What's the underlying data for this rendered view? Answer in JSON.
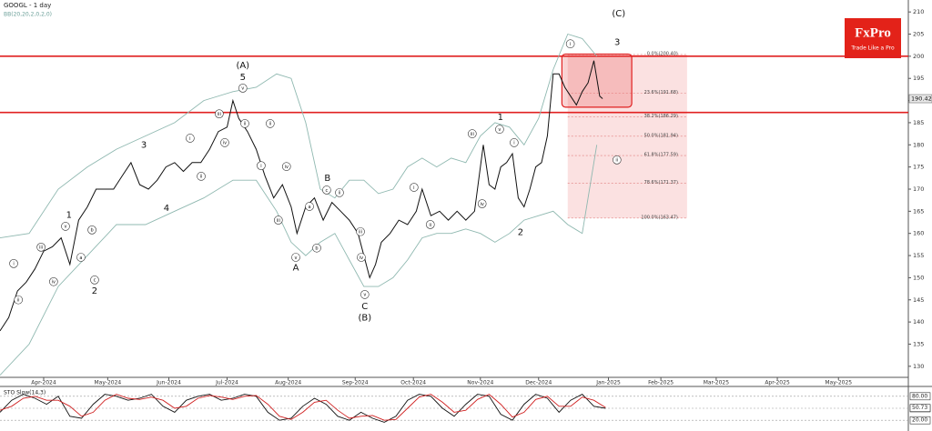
{
  "chart_data": [
    {
      "type": "line",
      "title": "GOOGL - 1 day",
      "subtitle": "BB(20,20,2,0,2,0)",
      "logo": {
        "name": "FxPro",
        "tagline": "Trade Like a Pro"
      },
      "xlim": [
        0,
        312
      ],
      "xticks": [
        {
          "value": 15,
          "label": "Apr-2024"
        },
        {
          "value": 37,
          "label": "May-2024"
        },
        {
          "value": 58,
          "label": "Jun-2024"
        },
        {
          "value": 78,
          "label": "Jul-2024"
        },
        {
          "value": 99,
          "label": "Aug-2024"
        },
        {
          "value": 122,
          "label": "Sep-2024"
        },
        {
          "value": 142,
          "label": "Oct-2024"
        },
        {
          "value": 165,
          "label": "Nov-2024"
        },
        {
          "value": 185,
          "label": "Dec-2024"
        },
        {
          "value": 209,
          "label": "Jan-2025"
        },
        {
          "value": 227,
          "label": "Feb-2025"
        },
        {
          "value": 246,
          "label": "Mar-2025"
        },
        {
          "value": 267,
          "label": "Apr-2025"
        },
        {
          "value": 288,
          "label": "May-2025"
        }
      ],
      "ylim": [
        127.5,
        212.7
      ],
      "yticks": [
        130,
        135,
        140,
        145,
        150,
        155,
        160,
        165,
        170,
        175,
        180,
        185,
        190,
        195,
        200,
        205,
        210
      ],
      "last_price": 190.42,
      "series": [
        {
          "color": "#111111",
          "x": [
            0,
            3,
            6,
            9,
            12,
            15,
            18,
            21,
            24,
            27,
            30,
            33,
            36,
            39,
            42,
            45,
            48,
            51,
            54,
            57,
            60,
            63,
            66,
            69,
            72,
            75,
            78,
            80,
            82,
            85,
            88,
            91,
            94,
            97,
            100,
            102,
            105,
            108,
            111,
            114,
            117,
            120,
            123,
            125,
            127,
            129,
            131,
            134,
            137,
            140,
            143,
            145,
            148,
            151,
            154,
            157,
            160,
            163,
            166,
            168,
            170,
            172,
            174,
            176,
            178,
            180,
            182,
            184,
            186,
            188,
            190,
            192,
            194,
            196,
            198,
            200,
            202,
            204,
            206,
            207
          ],
          "values": [
            138,
            141,
            147,
            149,
            152,
            156,
            157,
            159,
            153,
            163,
            166,
            170,
            170,
            170,
            173,
            176,
            171,
            170,
            172,
            175,
            176,
            174,
            176,
            176,
            179,
            183,
            184,
            190,
            186,
            183,
            179,
            173,
            168,
            171,
            166,
            160,
            166,
            168,
            163,
            167,
            165,
            163,
            160,
            155,
            150,
            153,
            158,
            160,
            163,
            162,
            165,
            170,
            164,
            165,
            163,
            165,
            163,
            165,
            180,
            171,
            170,
            175,
            176,
            178,
            168,
            166,
            170,
            175,
            176,
            182,
            196,
            196,
            193,
            191,
            189,
            192,
            194,
            199,
            191,
            190.42
          ]
        },
        {
          "color": "#8fb8b0",
          "x": [
            0,
            10,
            20,
            30,
            40,
            50,
            60,
            70,
            80,
            88,
            95,
            100,
            105,
            110,
            115,
            120,
            125,
            130,
            135,
            140,
            145,
            150,
            155,
            160,
            165,
            170,
            175,
            180,
            185,
            190,
            195,
            200,
            205
          ],
          "values": [
            159,
            160,
            170,
            175,
            179,
            182,
            185,
            190,
            192,
            193,
            196,
            195,
            185,
            170,
            168,
            172,
            172,
            169,
            170,
            175,
            177,
            175,
            177,
            176,
            182,
            185,
            184,
            180,
            186,
            197,
            205,
            204,
            200
          ]
        },
        {
          "color": "#8fb8b0",
          "x": [
            0,
            10,
            20,
            30,
            40,
            50,
            60,
            70,
            80,
            88,
            95,
            100,
            105,
            110,
            115,
            120,
            125,
            130,
            135,
            140,
            145,
            150,
            155,
            160,
            165,
            170,
            175,
            180,
            185,
            190,
            195,
            200,
            205
          ],
          "values": [
            128,
            135,
            148,
            155,
            162,
            162,
            165,
            168,
            172,
            172,
            165,
            158,
            155,
            158,
            160,
            154,
            148,
            148,
            150,
            154,
            159,
            160,
            160,
            161,
            160,
            158,
            160,
            163,
            164,
            165,
            162,
            160,
            180
          ]
        }
      ],
      "hlines": [
        {
          "value": 200.0,
          "color": "#e02020"
        },
        {
          "value": 187.3,
          "color": "#e02020"
        }
      ],
      "box": {
        "x": [
          193,
          217
        ],
        "y": [
          188.5,
          200.5
        ],
        "color": "#e02020"
      },
      "fib": {
        "x": [
          195,
          236
        ],
        "levels": [
          {
            "value": 200.4,
            "label": "0.0%(200.40)"
          },
          {
            "value": 191.68,
            "label": "23.6%(191.68)"
          },
          {
            "value": 186.29,
            "label": "38.2%(186.29)"
          },
          {
            "value": 181.94,
            "label": "50.0%(181.94)"
          },
          {
            "value": 177.59,
            "label": "61.8%(177.59)"
          },
          {
            "value": 171.37,
            "label": "78.6%(171.37)"
          },
          {
            "value": 163.47,
            "label": "100.0%(163.47)"
          }
        ]
      },
      "wave_labels": [
        {
          "text": "(A)",
          "x": 83.4,
          "y": 197.9
        },
        {
          "text": "5",
          "x": 83.4,
          "y": 195.2
        },
        {
          "text": "(C)",
          "x": 212.5,
          "y": 209.6
        },
        {
          "text": "3",
          "x": 212,
          "y": 203.2
        },
        {
          "text": "1",
          "x": 23.7,
          "y": 164.1
        },
        {
          "text": "2",
          "x": 32.5,
          "y": 147
        },
        {
          "text": "3",
          "x": 49.4,
          "y": 180
        },
        {
          "text": "4",
          "x": 57.2,
          "y": 165.7
        },
        {
          "text": "A",
          "x": 101.6,
          "y": 152.2
        },
        {
          "text": "B",
          "x": 112.5,
          "y": 172.5
        },
        {
          "text": "C",
          "x": 125.3,
          "y": 143.5
        },
        {
          "text": "(B)",
          "x": 125.3,
          "y": 140.9
        },
        {
          "text": "1",
          "x": 171.9,
          "y": 186.2
        },
        {
          "text": "2",
          "x": 178.8,
          "y": 160.2
        }
      ],
      "circled_labels": [
        {
          "text": "i",
          "x": 4.7,
          "y": 153.2
        },
        {
          "text": "ii",
          "x": 6.3,
          "y": 145.0
        },
        {
          "text": "iii",
          "x": 14.1,
          "y": 156.9
        },
        {
          "text": "iv",
          "x": 18.4,
          "y": 149.1
        },
        {
          "text": "v",
          "x": 22.5,
          "y": 161.6
        },
        {
          "text": "a",
          "x": 27.8,
          "y": 154.6
        },
        {
          "text": "b",
          "x": 31.6,
          "y": 160.8
        },
        {
          "text": "c",
          "x": 32.5,
          "y": 149.5
        },
        {
          "text": "i",
          "x": 65.3,
          "y": 181.5
        },
        {
          "text": "ii",
          "x": 69.1,
          "y": 172.9
        },
        {
          "text": "iii",
          "x": 75.3,
          "y": 187.0
        },
        {
          "text": "iv",
          "x": 77.2,
          "y": 180.5
        },
        {
          "text": "v",
          "x": 83.4,
          "y": 192.8
        },
        {
          "text": "ii",
          "x": 84.1,
          "y": 184.8
        },
        {
          "text": "i",
          "x": 89.7,
          "y": 175.3
        },
        {
          "text": "ii",
          "x": 92.8,
          "y": 184.8
        },
        {
          "text": "iii",
          "x": 95.6,
          "y": 163.0
        },
        {
          "text": "iv",
          "x": 98.4,
          "y": 175.1
        },
        {
          "text": "v",
          "x": 101.6,
          "y": 154.6
        },
        {
          "text": "a",
          "x": 106.3,
          "y": 166.1
        },
        {
          "text": "b",
          "x": 108.8,
          "y": 156.7
        },
        {
          "text": "c",
          "x": 112.2,
          "y": 169.8
        },
        {
          "text": "ii",
          "x": 116.6,
          "y": 169.2
        },
        {
          "text": "iii",
          "x": 123.8,
          "y": 160.4
        },
        {
          "text": "iv",
          "x": 124.1,
          "y": 154.6
        },
        {
          "text": "v",
          "x": 125.3,
          "y": 146.2
        },
        {
          "text": "i",
          "x": 142.2,
          "y": 170.4
        },
        {
          "text": "ii",
          "x": 147.8,
          "y": 162.0
        },
        {
          "text": "iii",
          "x": 162.2,
          "y": 182.5
        },
        {
          "text": "iv",
          "x": 165.6,
          "y": 166.7
        },
        {
          "text": "v",
          "x": 171.6,
          "y": 183.5
        },
        {
          "text": "i",
          "x": 176.6,
          "y": 180.5
        },
        {
          "text": "i",
          "x": 195.9,
          "y": 202.8
        },
        {
          "text": "ii",
          "x": 211.9,
          "y": 176.6
        }
      ]
    },
    {
      "type": "line",
      "title": "STO Slow(14,3)",
      "xlim": [
        0,
        312
      ],
      "ylim": [
        0,
        100
      ],
      "yticks": [
        {
          "value": 20,
          "label": "20.00"
        },
        {
          "value": 50,
          "label": "50.00"
        },
        {
          "value": 80,
          "label": "80.00"
        }
      ],
      "last_value": 50.73,
      "series": [
        {
          "color": "#111111",
          "x": [
            0,
            4,
            8,
            12,
            16,
            20,
            24,
            28,
            32,
            36,
            40,
            44,
            48,
            52,
            56,
            60,
            64,
            68,
            72,
            76,
            80,
            84,
            88,
            92,
            96,
            100,
            104,
            108,
            112,
            116,
            120,
            124,
            128,
            132,
            136,
            140,
            144,
            148,
            152,
            156,
            160,
            164,
            168,
            172,
            176,
            180,
            184,
            188,
            192,
            196,
            200,
            204,
            208
          ],
          "values": [
            40,
            70,
            85,
            75,
            60,
            80,
            30,
            25,
            60,
            85,
            80,
            70,
            75,
            85,
            55,
            40,
            70,
            80,
            85,
            70,
            75,
            85,
            80,
            40,
            20,
            25,
            55,
            75,
            60,
            30,
            20,
            40,
            25,
            15,
            30,
            70,
            85,
            80,
            50,
            30,
            60,
            85,
            80,
            35,
            20,
            60,
            85,
            75,
            40,
            70,
            85,
            55,
            50
          ]
        },
        {
          "color": "#d02020",
          "x": [
            0,
            4,
            8,
            12,
            16,
            20,
            24,
            28,
            32,
            36,
            40,
            44,
            48,
            52,
            56,
            60,
            64,
            68,
            72,
            76,
            80,
            84,
            88,
            92,
            96,
            100,
            104,
            108,
            112,
            116,
            120,
            124,
            128,
            132,
            136,
            140,
            144,
            148,
            152,
            156,
            160,
            164,
            168,
            172,
            176,
            180,
            184,
            188,
            192,
            196,
            200,
            204,
            208
          ],
          "values": [
            45,
            55,
            75,
            80,
            70,
            70,
            55,
            30,
            40,
            70,
            85,
            75,
            72,
            78,
            70,
            50,
            55,
            75,
            82,
            78,
            72,
            80,
            82,
            60,
            30,
            22,
            40,
            65,
            70,
            45,
            25,
            30,
            32,
            20,
            22,
            50,
            78,
            85,
            65,
            40,
            45,
            72,
            85,
            60,
            28,
            40,
            72,
            80,
            55,
            55,
            78,
            70,
            52
          ]
        }
      ]
    }
  ]
}
